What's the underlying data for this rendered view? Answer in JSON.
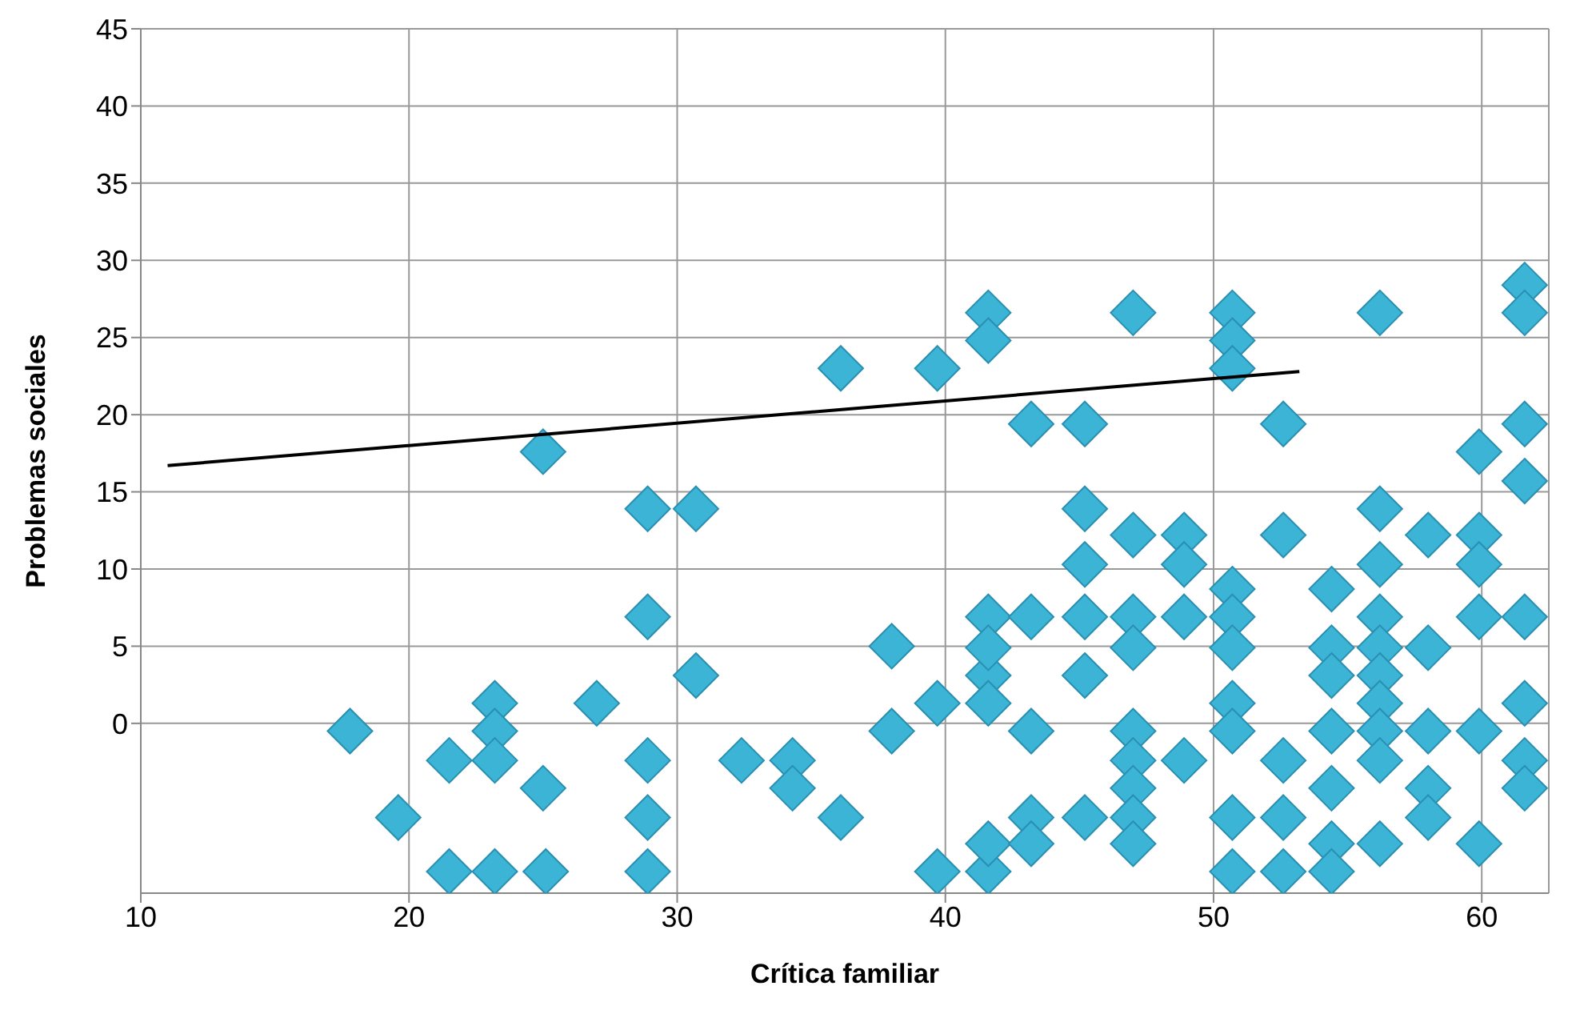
{
  "chart_data": {
    "type": "scatter",
    "xlabel": "Crítica familiar",
    "ylabel": "Problemas sociales",
    "xlim": [
      10,
      62.5
    ],
    "xticks": [
      10,
      20,
      30,
      40,
      50,
      60
    ],
    "ylim": [
      -11,
      45
    ],
    "yticks": [
      0,
      5,
      10,
      15,
      20,
      25,
      30,
      35,
      40,
      45
    ],
    "grid": true,
    "legend": false,
    "series": [
      {
        "color": "#3bb4d6",
        "marker": "diamond",
        "x": [
          17.8,
          25.0,
          21.5,
          23.2,
          23.2,
          23.2,
          19.6,
          25.0,
          27.0,
          28.9,
          28.9,
          30.7,
          30.7,
          28.9,
          28.9,
          21.5,
          23.2,
          25.1,
          28.9,
          32.4,
          34.3,
          34.3,
          36.1,
          36.1,
          38.0,
          38.0,
          39.7,
          39.7,
          41.6,
          41.6,
          41.6,
          41.6,
          41.6,
          41.6,
          39.7,
          41.6,
          41.6,
          43.2,
          43.2,
          43.2,
          43.2,
          43.2,
          45.2,
          45.2,
          45.2,
          45.2,
          45.2,
          45.2,
          47.0,
          47.0,
          47.0,
          47.0,
          47.0,
          47.0,
          47.0,
          47.0,
          47.0,
          48.9,
          48.9,
          48.9,
          48.9,
          50.7,
          50.7,
          50.7,
          50.7,
          50.7,
          50.7,
          50.7,
          50.7,
          50.7,
          50.7,
          52.6,
          52.6,
          52.6,
          52.6,
          52.6,
          54.4,
          54.4,
          54.4,
          54.4,
          54.4,
          54.4,
          54.4,
          56.2,
          56.2,
          56.2,
          56.2,
          56.2,
          56.2,
          56.2,
          56.2,
          56.2,
          56.2,
          58.0,
          58.0,
          58.0,
          58.0,
          58.0,
          59.9,
          59.9,
          59.9,
          59.9,
          59.9,
          59.9,
          61.6,
          61.6,
          61.6,
          61.6,
          61.6,
          61.6,
          61.6,
          61.6
        ],
        "values": [
          -0.5,
          17.6,
          -2.4,
          1.3,
          -0.5,
          -2.4,
          -6.1,
          -4.2,
          1.3,
          6.9,
          13.9,
          13.9,
          3.1,
          -2.4,
          -6.1,
          -9.6,
          -9.6,
          -9.6,
          -9.6,
          -2.4,
          -2.4,
          -4.2,
          -6.1,
          23.0,
          5.0,
          -0.5,
          23.0,
          1.3,
          26.6,
          24.8,
          6.9,
          3.1,
          1.3,
          4.9,
          -9.6,
          -9.6,
          -7.8,
          19.4,
          6.9,
          -0.5,
          -6.1,
          -7.8,
          19.4,
          13.9,
          10.3,
          6.9,
          3.1,
          -6.1,
          26.6,
          12.2,
          6.9,
          4.9,
          -0.5,
          -2.4,
          -4.2,
          -6.1,
          -7.8,
          12.2,
          10.3,
          6.9,
          -2.4,
          26.6,
          24.8,
          23.0,
          8.7,
          6.9,
          4.9,
          1.3,
          -0.5,
          -6.1,
          -9.6,
          19.4,
          12.2,
          -2.4,
          -6.1,
          -9.6,
          8.7,
          4.9,
          3.1,
          -0.5,
          -4.2,
          -7.8,
          -9.6,
          26.6,
          13.9,
          10.3,
          6.9,
          4.9,
          3.1,
          1.3,
          -0.5,
          -2.4,
          -7.8,
          12.2,
          4.9,
          -0.5,
          -4.2,
          -6.1,
          17.6,
          12.2,
          10.3,
          6.9,
          -0.5,
          -7.8,
          28.4,
          26.6,
          19.4,
          15.7,
          6.9,
          1.3,
          -2.4,
          -4.2
        ]
      },
      {
        "type": "line",
        "marker": "none",
        "color": "#000000",
        "x": [
          11,
          53.2
        ],
        "values": [
          16.7,
          22.8
        ]
      }
    ]
  }
}
